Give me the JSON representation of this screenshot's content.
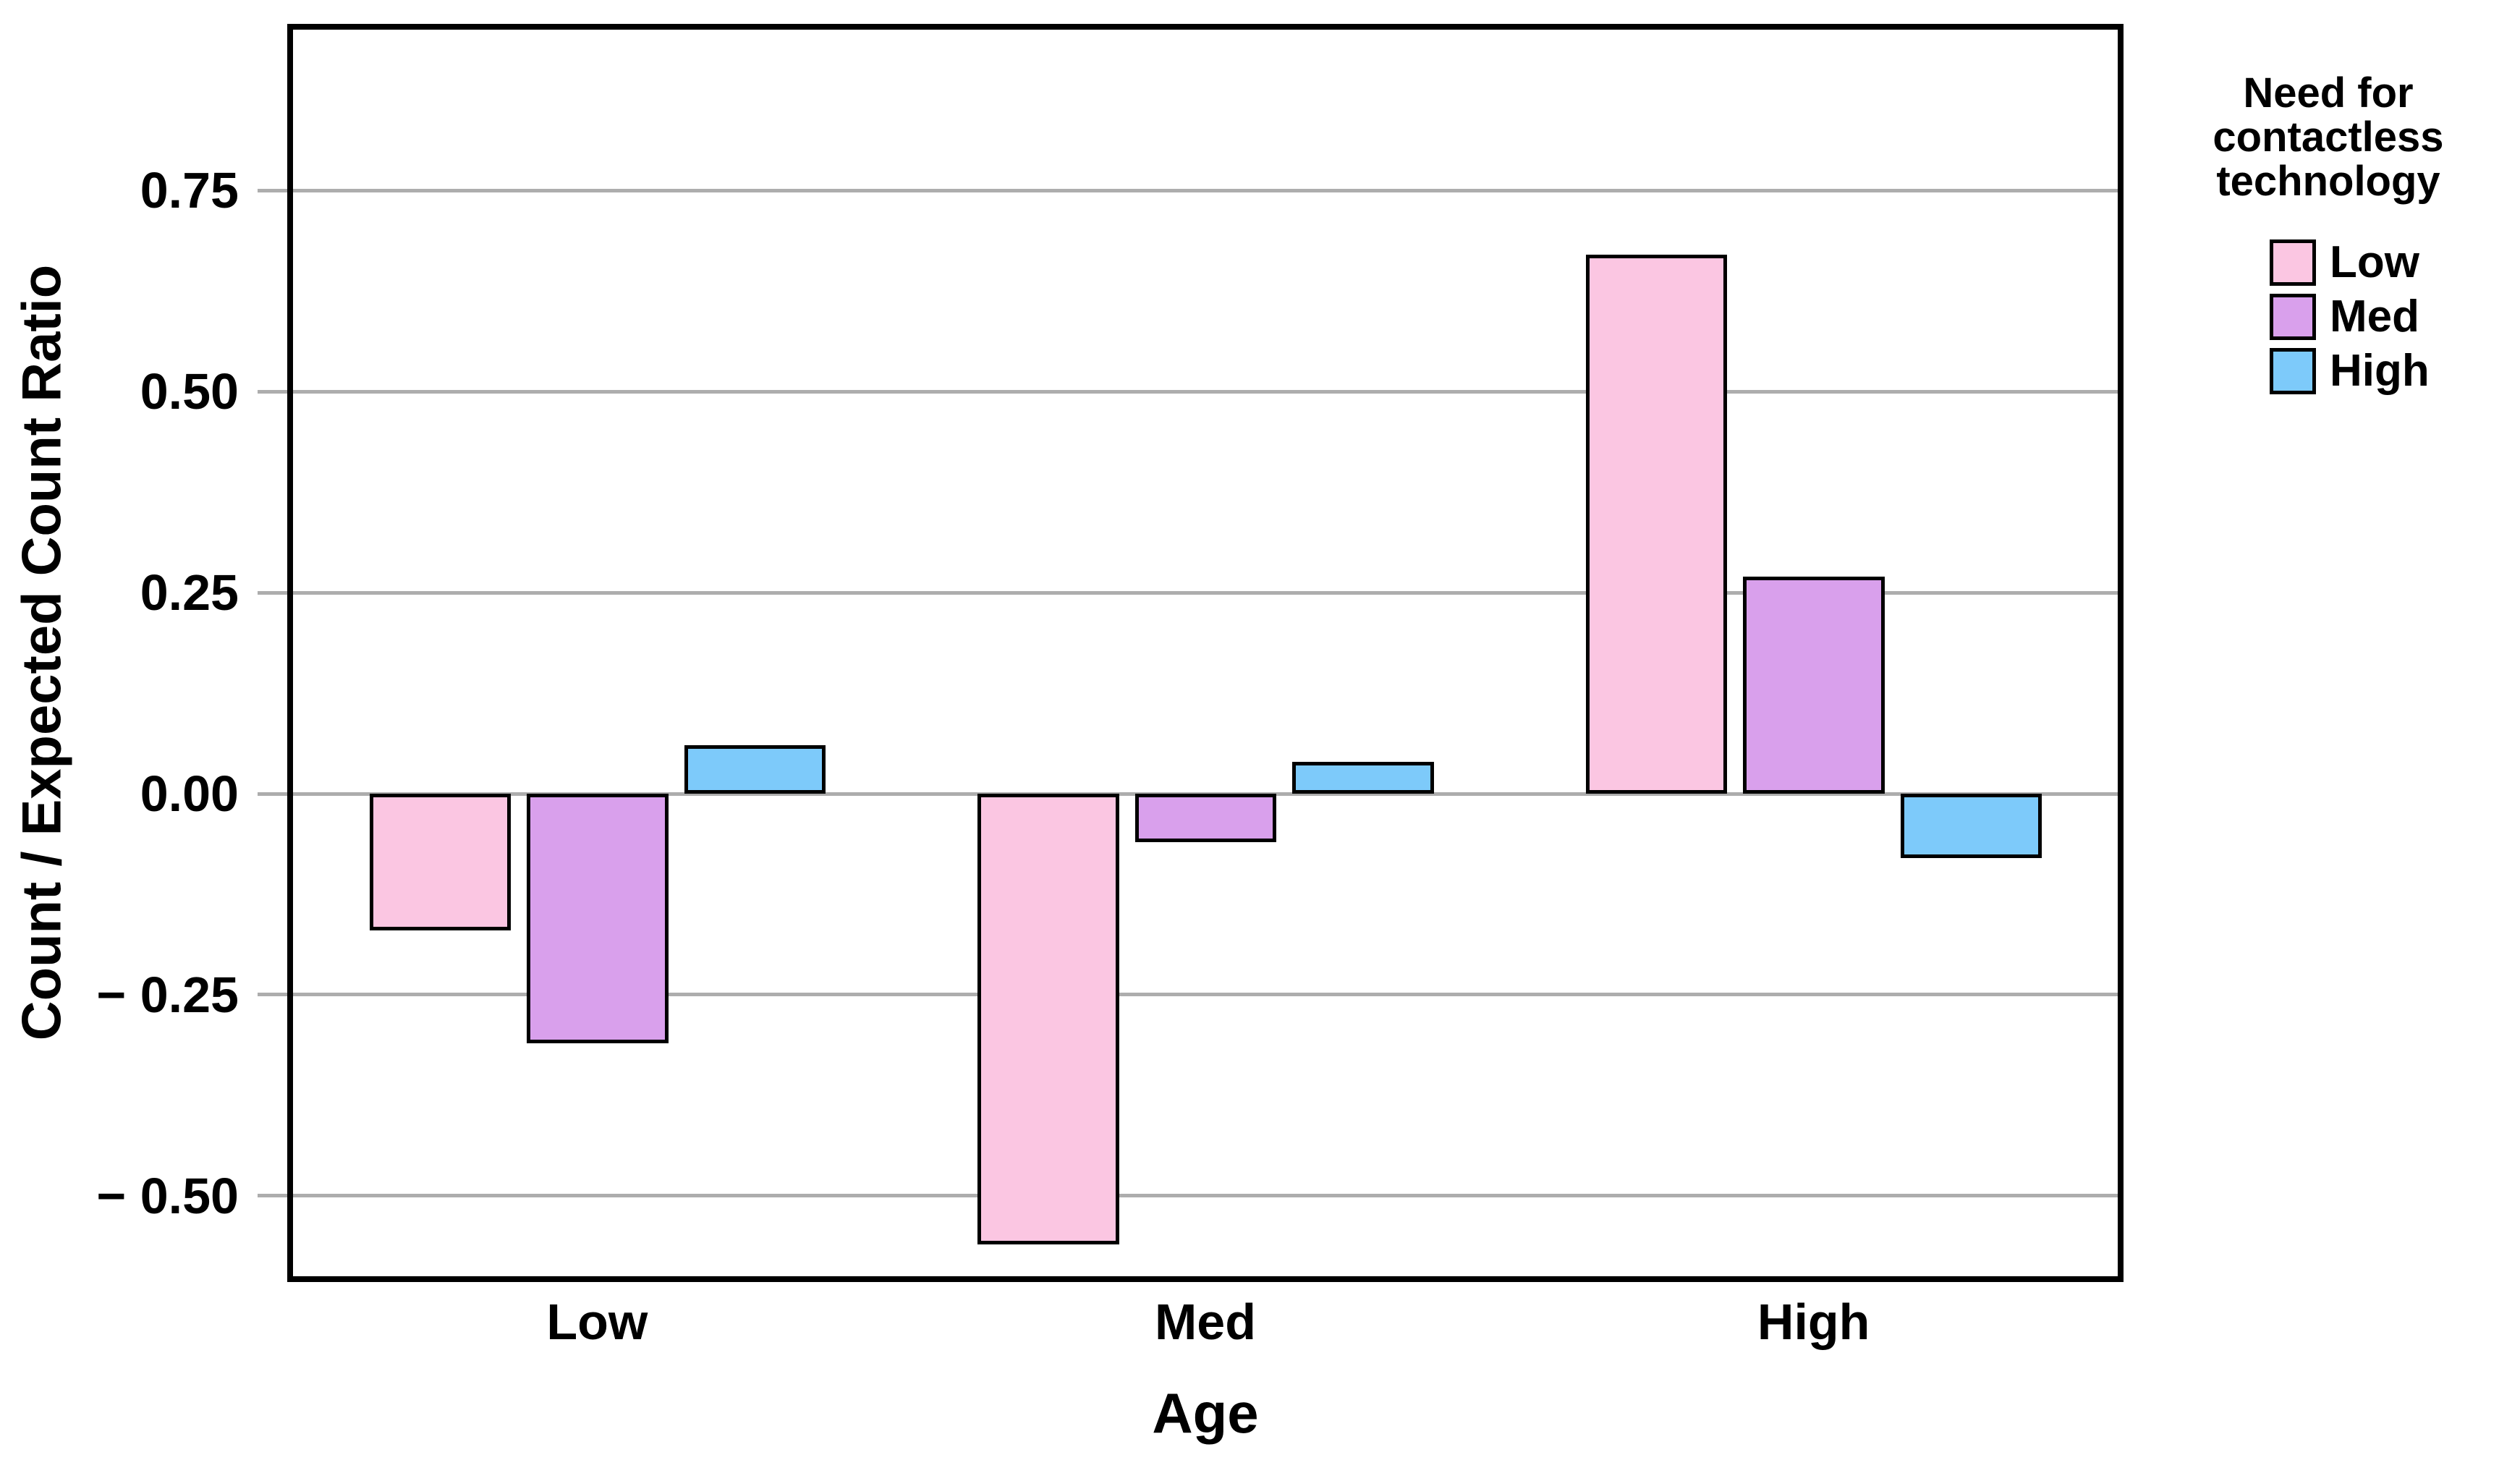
{
  "chart_data": {
    "type": "bar",
    "title": "",
    "xlabel": "Age",
    "ylabel": "Count / Expected Count Ratio",
    "categories": [
      "Low",
      "Med",
      "High"
    ],
    "series": [
      {
        "name": "Low",
        "color": "#FBC6E2",
        "values": [
          -0.17,
          -0.56,
          0.67
        ]
      },
      {
        "name": "Med",
        "color": "#D9A0EC",
        "values": [
          -0.31,
          -0.06,
          0.27
        ]
      },
      {
        "name": "High",
        "color": "#7DCAFA",
        "values": [
          0.06,
          0.04,
          -0.08
        ]
      }
    ],
    "ylim": [
      -0.6,
      0.95
    ],
    "yticks": [
      {
        "value": 0.75,
        "label": "0.75"
      },
      {
        "value": 0.5,
        "label": "0.50"
      },
      {
        "value": 0.25,
        "label": "0.25"
      },
      {
        "value": 0.0,
        "label": "0.00"
      },
      {
        "value": -0.25,
        "label": "− 0.25"
      },
      {
        "value": -0.5,
        "label": "− 0.50"
      }
    ],
    "grid": "horizontal",
    "gridline_color": "#ADADAD",
    "bar_border_color": "#000000",
    "legend": {
      "position": "top-right",
      "title_lines": [
        "Need for",
        "contactless",
        "technology"
      ]
    }
  }
}
